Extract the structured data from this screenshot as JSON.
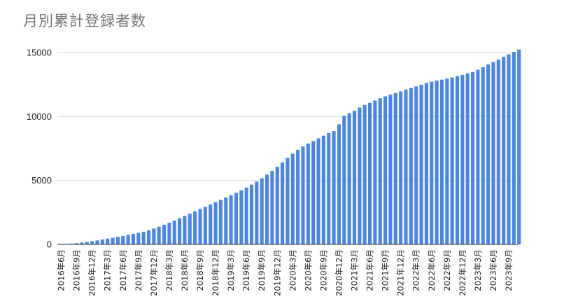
{
  "chart_data": {
    "type": "bar",
    "title": "月別累計登録者数",
    "xlabel": "",
    "ylabel": "",
    "ylim": [
      0,
      15000
    ],
    "yticks": [
      "15000",
      "10000",
      "5000",
      "0"
    ],
    "grid": true,
    "legend": "none",
    "bar_color": "#4a86e8",
    "categories": [
      "2016年6月",
      "2016年7月",
      "2016年8月",
      "2016年9月",
      "2016年10月",
      "2016年11月",
      "2016年12月",
      "2017年1月",
      "2017年2月",
      "2017年3月",
      "2017年4月",
      "2017年5月",
      "2017年6月",
      "2017年7月",
      "2017年8月",
      "2017年9月",
      "2017年10月",
      "2017年11月",
      "2017年12月",
      "2018年1月",
      "2018年2月",
      "2018年3月",
      "2018年4月",
      "2018年5月",
      "2018年6月",
      "2018年7月",
      "2018年8月",
      "2018年9月",
      "2018年10月",
      "2018年11月",
      "2018年12月",
      "2019年1月",
      "2019年2月",
      "2019年3月",
      "2019年4月",
      "2019年5月",
      "2019年6月",
      "2019年7月",
      "2019年8月",
      "2019年9月",
      "2019年10月",
      "2019年11月",
      "2019年12月",
      "2020年1月",
      "2020年2月",
      "2020年3月",
      "2020年4月",
      "2020年5月",
      "2020年6月",
      "2020年7月",
      "2020年8月",
      "2020年9月",
      "2020年10月",
      "2020年11月",
      "2020年12月",
      "2021年1月",
      "2021年2月",
      "2021年3月",
      "2021年4月",
      "2021年5月",
      "2021年6月",
      "2021年7月",
      "2021年8月",
      "2021年9月",
      "2021年10月",
      "2021年11月",
      "2021年12月",
      "2022年1月",
      "2022年2月",
      "2022年3月",
      "2022年4月",
      "2022年5月",
      "2022年6月",
      "2022年7月",
      "2022年8月",
      "2022年9月",
      "2022年10月",
      "2022年11月",
      "2022年12月",
      "2023年1月",
      "2023年2月",
      "2023年3月",
      "2023年4月",
      "2023年5月",
      "2023年6月",
      "2023年7月",
      "2023年8月",
      "2023年9月",
      "2023年10月",
      "2023年11月"
    ],
    "values": [
      10,
      30,
      60,
      100,
      140,
      190,
      250,
      310,
      380,
      450,
      520,
      590,
      660,
      740,
      820,
      900,
      990,
      1100,
      1240,
      1380,
      1530,
      1690,
      1860,
      2040,
      2220,
      2400,
      2580,
      2760,
      2940,
      3120,
      3300,
      3480,
      3660,
      3840,
      4030,
      4230,
      4440,
      4670,
      4910,
      5170,
      5450,
      5750,
      6070,
      6400,
      6760,
      7090,
      7400,
      7650,
      7880,
      8080,
      8290,
      8500,
      8720,
      8860,
      9390,
      10050,
      10250,
      10450,
      10700,
      10900,
      11070,
      11250,
      11430,
      11570,
      11710,
      11830,
      11960,
      12100,
      12220,
      12350,
      12480,
      12620,
      12720,
      12800,
      12880,
      12960,
      13050,
      13150,
      13250,
      13360,
      13470,
      13650,
      13850,
      14060,
      14250,
      14440,
      14660,
      14860,
      15050,
      15230
    ],
    "xtick_labels": [
      "2016年6月",
      "2016年9月",
      "2016年12月",
      "2017年3月",
      "2017年6月",
      "2017年9月",
      "2017年12月",
      "2018年3月",
      "2018年6月",
      "2018年9月",
      "2018年12月",
      "2019年3月",
      "2019年6月",
      "2019年9月",
      "2019年12月",
      "2020年3月",
      "2020年6月",
      "2020年9月",
      "2020年12月",
      "2021年3月",
      "2021年6月",
      "2021年9月",
      "2021年12月",
      "2022年3月",
      "2022年6月",
      "2022年9月",
      "2022年12月",
      "2023年3月",
      "2023年6月",
      "2023年9月"
    ]
  }
}
